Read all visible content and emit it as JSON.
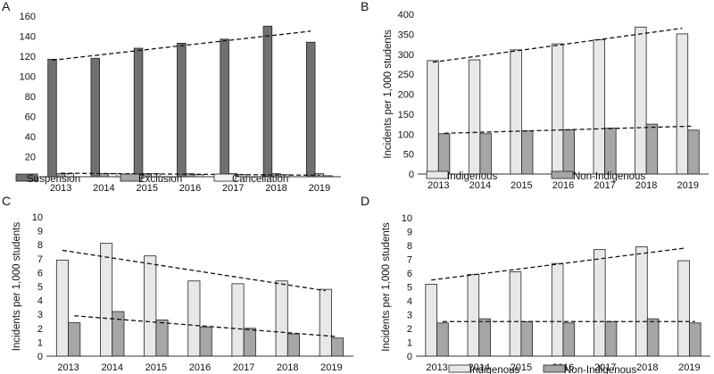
{
  "chart_data": [
    {
      "panel_label": "A",
      "type": "bar",
      "ylabel": "",
      "ylim": [
        0,
        160
      ],
      "yticks": [
        0,
        20,
        40,
        60,
        80,
        100,
        120,
        140,
        160
      ],
      "categories": [
        "2013",
        "2014",
        "2015",
        "2016",
        "2017",
        "2018",
        "2019"
      ],
      "series": [
        {
          "name": "Suspension",
          "color": "#707070",
          "values": [
            117,
            118,
            128,
            133,
            137,
            150,
            134
          ]
        },
        {
          "name": "Exclusion",
          "color": "#a6a6a6",
          "values": [
            3,
            3,
            3,
            3,
            3,
            3,
            3
          ]
        },
        {
          "name": "Cancellation",
          "color": "#f2f2f2",
          "values": [
            3,
            3,
            3,
            2,
            2,
            2,
            1
          ]
        }
      ],
      "trendlines": [
        {
          "series": "Suspension",
          "start": 116,
          "end": 145
        },
        {
          "series": "Exclusion",
          "start": 3.5,
          "end": 1.5
        }
      ]
    },
    {
      "panel_label": "B",
      "type": "bar",
      "ylabel": "Incidents per 1,000 students",
      "ylim": [
        0,
        400
      ],
      "yticks": [
        0,
        50,
        100,
        150,
        200,
        250,
        300,
        350,
        400
      ],
      "categories": [
        "2013",
        "2014",
        "2015",
        "2016",
        "2017",
        "2018",
        "2019"
      ],
      "series": [
        {
          "name": "Indigenous",
          "color": "#e8e8e8",
          "values": [
            284,
            286,
            311,
            326,
            336,
            368,
            351
          ]
        },
        {
          "name": "Non-Indigenous",
          "color": "#a6a6a6",
          "values": [
            101,
            101,
            108,
            111,
            115,
            125,
            110
          ]
        }
      ],
      "trendlines": [
        {
          "series": "Indigenous",
          "start": 280,
          "end": 365
        },
        {
          "series": "Non-Indigenous",
          "start": 102,
          "end": 120
        }
      ]
    },
    {
      "panel_label": "C",
      "type": "bar",
      "ylabel": "Incidents per 1,000 students",
      "ylim": [
        0,
        10
      ],
      "yticks": [
        0,
        1,
        2,
        3,
        4,
        5,
        6,
        7,
        8,
        9,
        10
      ],
      "categories": [
        "2013",
        "2014",
        "2015",
        "2016",
        "2017",
        "2018",
        "2019"
      ],
      "series": [
        {
          "name": "Indigenous",
          "color": "#e8e8e8",
          "values": [
            6.9,
            8.1,
            7.2,
            5.4,
            5.2,
            5.4,
            4.8
          ]
        },
        {
          "name": "Non-Indigenous",
          "color": "#a6a6a6",
          "values": [
            2.4,
            3.2,
            2.6,
            2.1,
            2.0,
            1.6,
            1.3
          ]
        }
      ],
      "trendlines": [
        {
          "series": "Indigenous",
          "start": 7.6,
          "end": 4.7
        },
        {
          "series": "Non-Indigenous",
          "start": 2.9,
          "end": 1.4
        }
      ]
    },
    {
      "panel_label": "D",
      "type": "bar",
      "ylabel": "Incidents per 1,000 students",
      "ylim": [
        0,
        10
      ],
      "yticks": [
        0,
        1,
        2,
        3,
        4,
        5,
        6,
        7,
        8,
        9,
        10
      ],
      "categories": [
        "2013",
        "2014",
        "2015",
        "2016",
        "2017",
        "2018",
        "2019"
      ],
      "series": [
        {
          "name": "Indigenous",
          "color": "#e8e8e8",
          "values": [
            5.2,
            5.9,
            6.1,
            6.7,
            7.7,
            7.9,
            6.9
          ]
        },
        {
          "name": "Non-Indigenous",
          "color": "#a6a6a6",
          "values": [
            2.4,
            2.7,
            2.5,
            2.4,
            2.5,
            2.7,
            2.4
          ]
        }
      ],
      "trendlines": [
        {
          "series": "Indigenous",
          "start": 5.5,
          "end": 7.8
        },
        {
          "series": "Non-Indigenous",
          "start": 2.5,
          "end": 2.5
        }
      ]
    }
  ]
}
